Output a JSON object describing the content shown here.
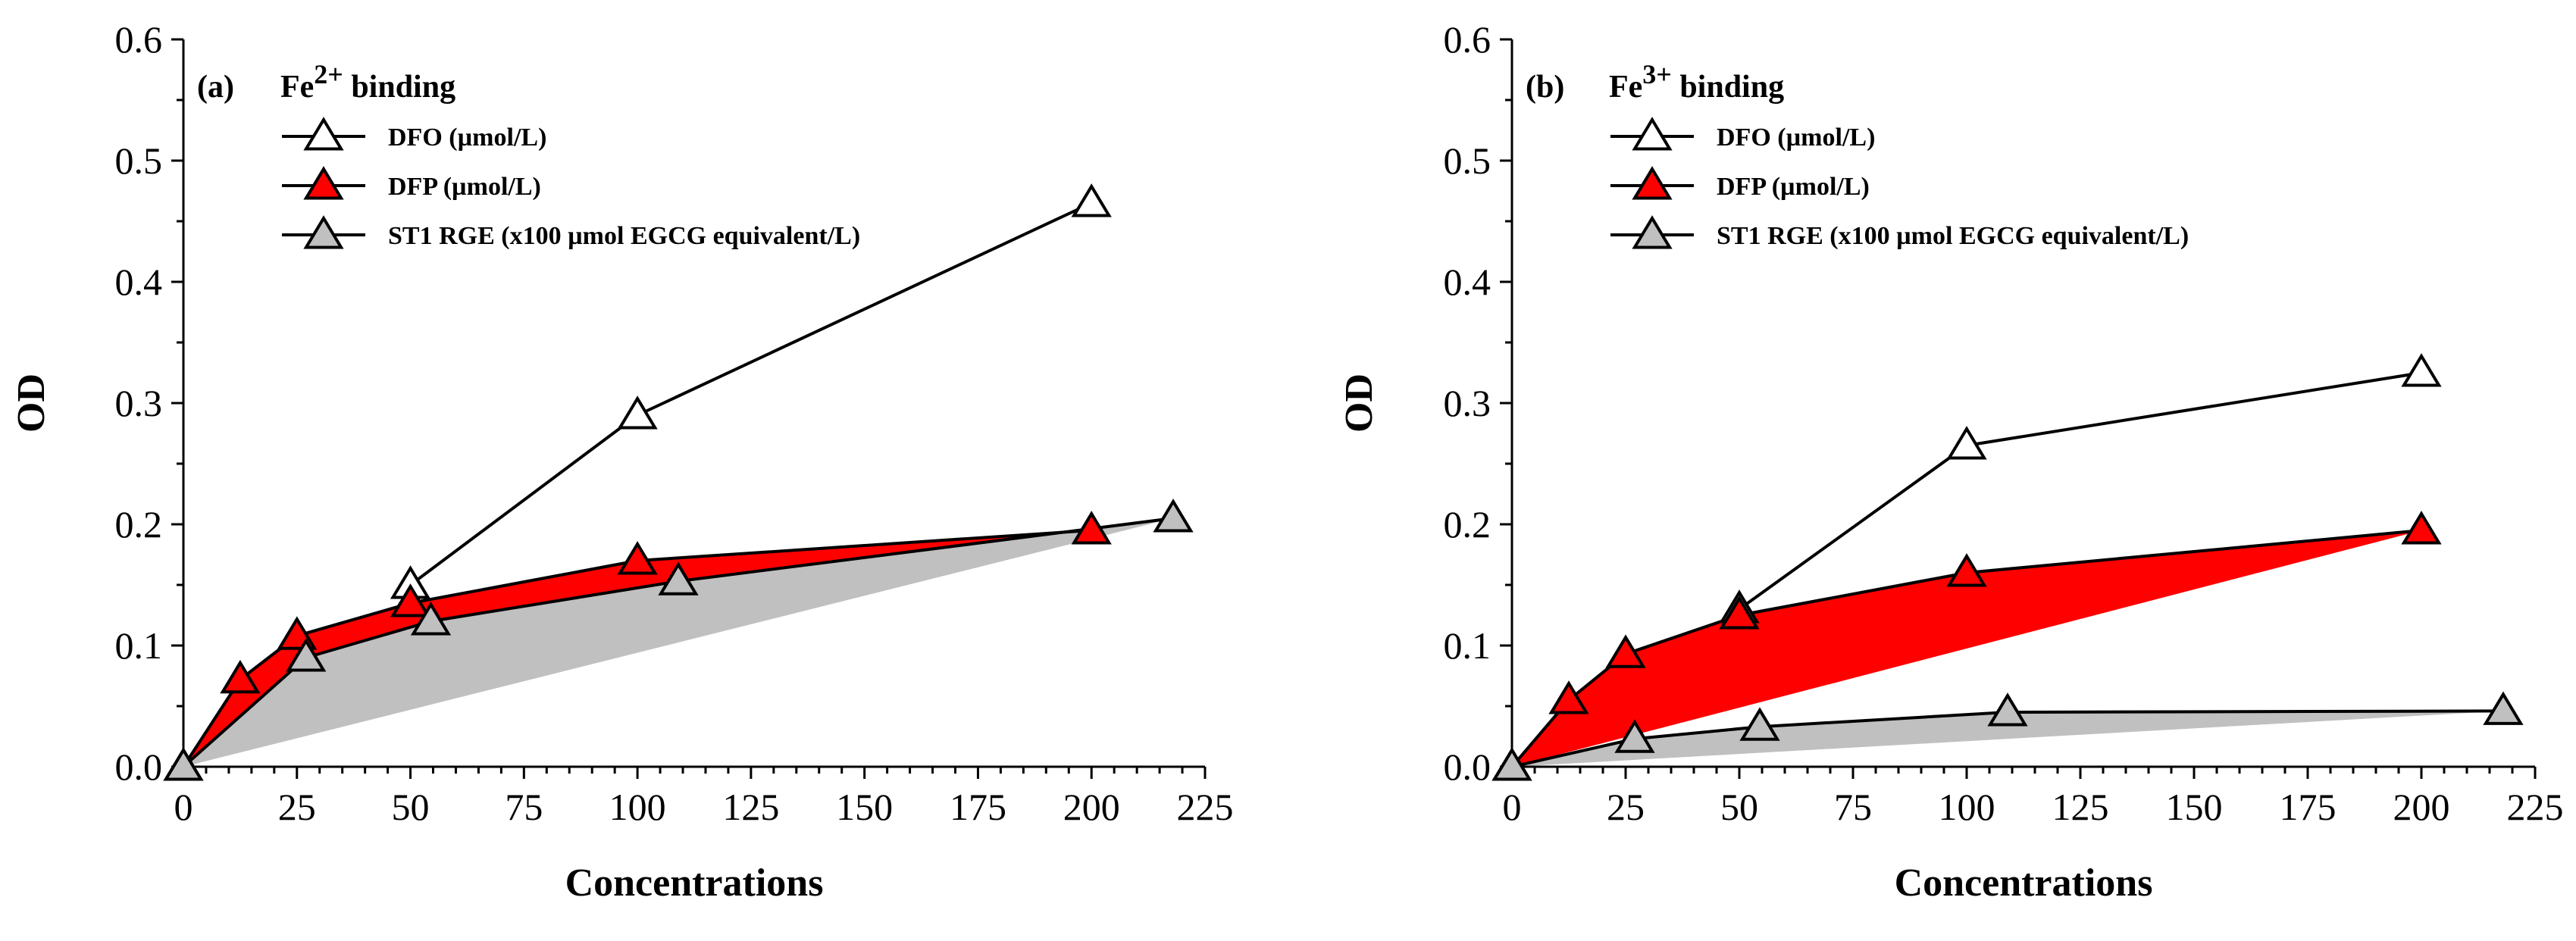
{
  "chart_data": [
    {
      "type": "line",
      "panel_label": "(a)",
      "title": {
        "prefix": "Fe",
        "superscript": "2+",
        "suffix": " binding"
      },
      "xlabel": "Concentrations",
      "ylabel": "OD",
      "xlim": [
        0,
        225
      ],
      "ylim": [
        0,
        0.6
      ],
      "xticks": [
        0,
        25,
        50,
        75,
        100,
        125,
        150,
        175,
        200,
        225
      ],
      "xtick_labels": [
        "0",
        "25",
        "50",
        "75",
        "100",
        "125",
        "150",
        "175",
        "200",
        "225"
      ],
      "yticks": [
        0,
        0.1,
        0.2,
        0.3,
        0.4,
        0.5,
        0.6
      ],
      "ytick_labels": [
        "0.0",
        "0.1",
        "0.2",
        "0.3",
        "0.4",
        "0.5",
        "0.6"
      ],
      "legend_position": "top-left",
      "series": [
        {
          "name": "DFO (µmol/L)",
          "marker_color": "#ffffff",
          "x": [
            50,
            100,
            200
          ],
          "y": [
            0.15,
            0.29,
            0.465
          ]
        },
        {
          "name": "DFP (µmol/L)",
          "marker_color": "#ff0000",
          "fill": "#ff0000",
          "x": [
            0,
            12.5,
            25,
            50,
            100,
            200
          ],
          "y": [
            0.0,
            0.072,
            0.108,
            0.135,
            0.17,
            0.195
          ]
        },
        {
          "name": "ST1 RGE (x100 µmol EGCG equivalent/L)",
          "marker_color": "#c0c0c0",
          "fill": "#c0c0c0",
          "x": [
            0,
            27,
            54.5,
            109,
            218
          ],
          "y": [
            0.0,
            0.09,
            0.12,
            0.153,
            0.205
          ]
        }
      ]
    },
    {
      "type": "line",
      "panel_label": "(b)",
      "title": {
        "prefix": "Fe",
        "superscript": "3+",
        "suffix": " binding"
      },
      "xlabel": "Concentrations",
      "ylabel": "OD",
      "xlim": [
        0,
        225
      ],
      "ylim": [
        0,
        0.6
      ],
      "xticks": [
        0,
        25,
        50,
        75,
        100,
        125,
        150,
        175,
        200,
        225
      ],
      "xtick_labels": [
        "0",
        "25",
        "50",
        "75",
        "100",
        "125",
        "150",
        "175",
        "200",
        "225"
      ],
      "yticks": [
        0,
        0.1,
        0.2,
        0.3,
        0.4,
        0.5,
        0.6
      ],
      "ytick_labels": [
        "0.0",
        "0.1",
        "0.2",
        "0.3",
        "0.4",
        "0.5",
        "0.6"
      ],
      "legend_position": "top-left",
      "series": [
        {
          "name": "DFO (µmol/L)",
          "marker_color": "#ffffff",
          "x": [
            50,
            100,
            200
          ],
          "y": [
            0.13,
            0.265,
            0.325
          ]
        },
        {
          "name": "DFP (µmol/L)",
          "marker_color": "#ff0000",
          "fill": "#ff0000",
          "x": [
            0,
            12.5,
            25,
            50,
            100,
            200
          ],
          "y": [
            0.0,
            0.055,
            0.093,
            0.125,
            0.16,
            0.195
          ]
        },
        {
          "name": "ST1 RGE (x100 µmol EGCG equivalent/L)",
          "marker_color": "#c0c0c0",
          "fill": "#c0c0c0",
          "x": [
            0,
            27,
            54.5,
            109,
            218
          ],
          "y": [
            0.0,
            0.023,
            0.033,
            0.045,
            0.046
          ]
        }
      ]
    }
  ]
}
